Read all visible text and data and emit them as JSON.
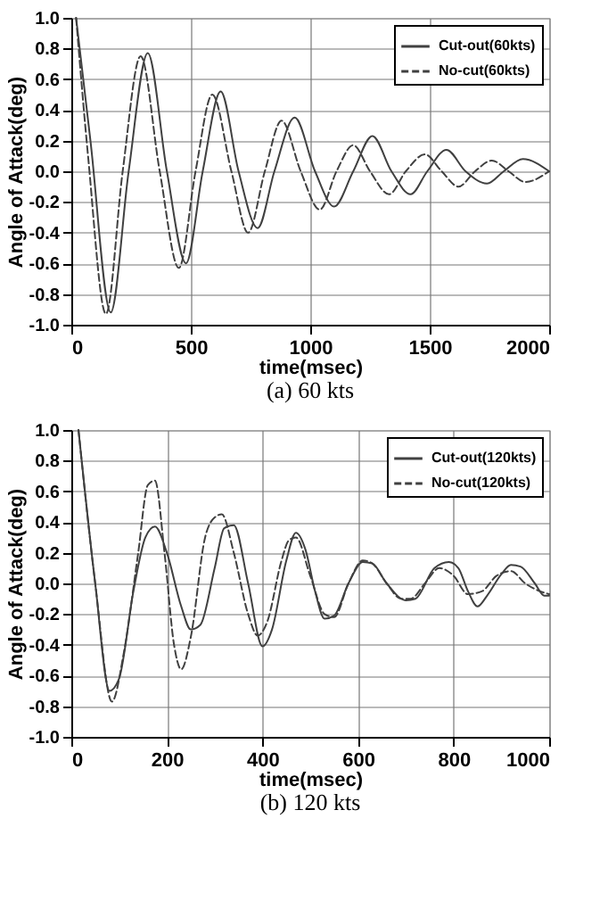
{
  "chart_data": [
    {
      "type": "line",
      "title": "(a)  60  kts",
      "xlabel": "time(msec)",
      "ylabel": "Angle of Attack(deg)",
      "xlim": [
        0,
        2000
      ],
      "xticks": [
        0,
        500,
        1000,
        1500,
        2000
      ],
      "ylim": [
        -1.0,
        1.0
      ],
      "yticks": [
        {
          "value": -1.0,
          "label": "-1.0"
        },
        {
          "value": -0.8,
          "label": "-0.8"
        },
        {
          "value": -0.6,
          "label": "-0.6"
        },
        {
          "value": -0.4,
          "label": "-0.4"
        },
        {
          "value": -0.2,
          "label": "-0.2"
        },
        {
          "value": 0.0,
          "label": "0.0"
        },
        {
          "value": 0.2,
          "label": "0.2"
        },
        {
          "value": 0.4,
          "label": "0.4"
        },
        {
          "value": 0.6,
          "label": "0.6"
        },
        {
          "value": 0.8,
          "label": "0.8"
        },
        {
          "value": 1.0,
          "label": "1.0"
        }
      ],
      "grid": true,
      "legend": "top right",
      "series": [
        {
          "name": "Cut-out(60kts)",
          "color": "#404040",
          "line_style": "solid",
          "x": [
            20,
            80,
            165,
            240,
            320,
            400,
            480,
            550,
            625,
            700,
            780,
            850,
            935,
            1020,
            1100,
            1180,
            1260,
            1340,
            1420,
            1490,
            1570,
            1650,
            1740,
            1810,
            1890,
            2000
          ],
          "values": [
            1.0,
            0.2,
            -0.92,
            0.0,
            0.77,
            0.0,
            -0.6,
            0.0,
            0.52,
            0.0,
            -0.37,
            0.0,
            0.35,
            0.0,
            -0.23,
            0.0,
            0.23,
            0.0,
            -0.15,
            0.0,
            0.14,
            0.0,
            -0.08,
            0.0,
            0.08,
            0.0
          ]
        },
        {
          "name": "No-cut(60kts)",
          "color": "#404040",
          "line_style": "dashed",
          "x": [
            20,
            70,
            145,
            215,
            290,
            370,
            450,
            520,
            590,
            670,
            740,
            810,
            880,
            960,
            1040,
            1110,
            1180,
            1250,
            1330,
            1400,
            1480,
            1550,
            1620,
            1690,
            1760,
            1830,
            1900,
            2000
          ],
          "values": [
            1.0,
            0.1,
            -0.93,
            0.0,
            0.75,
            0.0,
            -0.63,
            0.0,
            0.5,
            0.0,
            -0.4,
            0.0,
            0.33,
            0.0,
            -0.25,
            0.0,
            0.17,
            0.0,
            -0.15,
            0.0,
            0.11,
            0.0,
            -0.1,
            0.0,
            0.07,
            0.0,
            -0.07,
            0.0
          ]
        }
      ]
    },
    {
      "type": "line",
      "title": "(b)  120  kts",
      "xlabel": "time(msec)",
      "ylabel": "Angle of Attack(deg)",
      "xlim": [
        0,
        1000
      ],
      "xticks": [
        0,
        200,
        400,
        600,
        800,
        1000
      ],
      "ylim": [
        -1.0,
        1.0
      ],
      "yticks": [
        {
          "value": -1.0,
          "label": "-1.0"
        },
        {
          "value": -0.8,
          "label": "-0.8"
        },
        {
          "value": -0.6,
          "label": "-0.6"
        },
        {
          "value": -0.4,
          "label": "-0.4"
        },
        {
          "value": -0.2,
          "label": "-0.2"
        },
        {
          "value": 0.0,
          "label": "0.0"
        },
        {
          "value": 0.2,
          "label": "0.2"
        },
        {
          "value": 0.4,
          "label": "0.4"
        },
        {
          "value": 0.6,
          "label": "0.6"
        },
        {
          "value": 0.8,
          "label": "0.8"
        },
        {
          "value": 1.0,
          "label": "1.0"
        }
      ],
      "grid": true,
      "legend": "top right",
      "series": [
        {
          "name": "Cut-out(120kts)",
          "color": "#404040",
          "line_style": "solid",
          "x": [
            15,
            50,
            80,
            100,
            130,
            155,
            175,
            200,
            230,
            250,
            270,
            300,
            320,
            340,
            370,
            400,
            420,
            450,
            470,
            490,
            510,
            530,
            550,
            580,
            610,
            630,
            660,
            700,
            720,
            760,
            790,
            810,
            830,
            850,
            870,
            900,
            920,
            940,
            970,
            990,
            1000
          ],
          "values": [
            1.0,
            0.0,
            -0.7,
            -0.62,
            -0.05,
            0.3,
            0.37,
            0.2,
            -0.15,
            -0.3,
            -0.27,
            0.1,
            0.36,
            0.38,
            0.0,
            -0.41,
            -0.3,
            0.15,
            0.33,
            0.22,
            -0.05,
            -0.23,
            -0.21,
            0.0,
            0.14,
            0.13,
            0.0,
            -0.11,
            -0.1,
            0.1,
            0.14,
            0.1,
            -0.05,
            -0.15,
            -0.08,
            0.06,
            0.12,
            0.11,
            0.0,
            -0.08,
            -0.08
          ]
        },
        {
          "name": "No-cut(120kts)",
          "color": "#404040",
          "line_style": "dashed",
          "x": [
            15,
            50,
            85,
            110,
            140,
            160,
            175,
            195,
            215,
            230,
            250,
            280,
            300,
            315,
            340,
            370,
            390,
            410,
            440,
            455,
            470,
            500,
            530,
            550,
            580,
            610,
            630,
            660,
            690,
            710,
            740,
            770,
            800,
            830,
            860,
            890,
            920,
            950,
            980,
            1000
          ],
          "values": [
            1.0,
            0.0,
            -0.77,
            -0.45,
            0.2,
            0.64,
            0.67,
            0.2,
            -0.4,
            -0.56,
            -0.35,
            0.3,
            0.43,
            0.45,
            0.2,
            -0.2,
            -0.34,
            -0.25,
            0.15,
            0.28,
            0.3,
            0.05,
            -0.2,
            -0.22,
            0.0,
            0.15,
            0.13,
            0.0,
            -0.1,
            -0.1,
            0.0,
            0.1,
            0.05,
            -0.07,
            -0.05,
            0.05,
            0.08,
            0.0,
            -0.05,
            -0.07
          ]
        }
      ]
    }
  ]
}
